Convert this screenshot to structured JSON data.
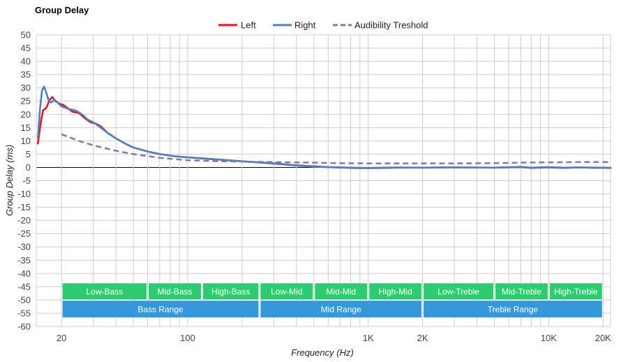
{
  "chart_data": {
    "type": "line",
    "title": "Group Delay",
    "xlabel": "Frequency (Hz)",
    "ylabel": "Group Delay (ms)",
    "x_scale": "log",
    "xlim": [
      14.5,
      22000
    ],
    "ylim": [
      -60,
      50
    ],
    "yticks": [
      50,
      45,
      40,
      35,
      30,
      25,
      20,
      15,
      10,
      5,
      0,
      -5,
      -10,
      -15,
      -20,
      -25,
      -30,
      -35,
      -40,
      -45,
      -50,
      -55,
      -60
    ],
    "xticks": [
      {
        "value": 20,
        "label": "20"
      },
      {
        "value": 100,
        "label": "100"
      },
      {
        "value": 1000,
        "label": "1K"
      },
      {
        "value": 2000,
        "label": "2K"
      },
      {
        "value": 10000,
        "label": "10K"
      },
      {
        "value": 20000,
        "label": "20K"
      }
    ],
    "grid": true,
    "legend_position": "top-center",
    "series": [
      {
        "name": "Left",
        "color": "#e8141c",
        "style": "solid",
        "points": [
          [
            14.8,
            9
          ],
          [
            15.3,
            16
          ],
          [
            15.8,
            21.5
          ],
          [
            16.5,
            22.5
          ],
          [
            17.2,
            25.5
          ],
          [
            17.8,
            26.5
          ],
          [
            18.5,
            25
          ],
          [
            19.5,
            24
          ],
          [
            20.5,
            23.5
          ],
          [
            21.5,
            22.5
          ],
          [
            23,
            21
          ],
          [
            25,
            20.5
          ],
          [
            27,
            18.5
          ],
          [
            29,
            17
          ],
          [
            31,
            16.5
          ],
          [
            33,
            15.5
          ],
          [
            36,
            13
          ],
          [
            40,
            11
          ],
          [
            45,
            9
          ],
          [
            50,
            7.5
          ],
          [
            60,
            6
          ],
          [
            70,
            5
          ],
          [
            85,
            4.2
          ],
          [
            100,
            3.8
          ],
          [
            130,
            3.2
          ],
          [
            160,
            2.8
          ],
          [
            200,
            2.3
          ],
          [
            300,
            1.5
          ],
          [
            400,
            0.8
          ],
          [
            500,
            0.4
          ],
          [
            600,
            0.1
          ],
          [
            800,
            -0.2
          ],
          [
            1000,
            -0.3
          ],
          [
            1200,
            -0.2
          ],
          [
            1500,
            -0.1
          ],
          [
            2000,
            -0.1
          ],
          [
            3000,
            0
          ],
          [
            5000,
            -0.1
          ],
          [
            7000,
            0.1
          ],
          [
            8000,
            -0.2
          ],
          [
            10000,
            0
          ],
          [
            12000,
            -0.2
          ],
          [
            15000,
            0
          ],
          [
            18000,
            -0.1
          ],
          [
            22000,
            -0.2
          ]
        ]
      },
      {
        "name": "Right",
        "color": "#4f81bd",
        "style": "solid",
        "points": [
          [
            14.8,
            11
          ],
          [
            15.2,
            22
          ],
          [
            15.6,
            29
          ],
          [
            16,
            30.5
          ],
          [
            16.5,
            28
          ],
          [
            17,
            25
          ],
          [
            17.5,
            24.5
          ],
          [
            18.3,
            25.5
          ],
          [
            19,
            24.5
          ],
          [
            20,
            23
          ],
          [
            21,
            22.5
          ],
          [
            22,
            22
          ],
          [
            24,
            21.5
          ],
          [
            26,
            20
          ],
          [
            28,
            18
          ],
          [
            30,
            17
          ],
          [
            33,
            15
          ],
          [
            36,
            13
          ],
          [
            40,
            11
          ],
          [
            45,
            9
          ],
          [
            50,
            7.5
          ],
          [
            60,
            6
          ],
          [
            70,
            5
          ],
          [
            85,
            4.2
          ],
          [
            100,
            3.8
          ],
          [
            130,
            3.3
          ],
          [
            160,
            2.8
          ],
          [
            200,
            2.3
          ],
          [
            300,
            1.4
          ],
          [
            400,
            0.7
          ],
          [
            500,
            0.3
          ],
          [
            600,
            0.1
          ],
          [
            800,
            -0.1
          ],
          [
            1000,
            -0.2
          ],
          [
            1200,
            -0.1
          ],
          [
            1500,
            0
          ],
          [
            2000,
            -0.1
          ],
          [
            3000,
            0
          ],
          [
            5000,
            -0.1
          ],
          [
            7000,
            0.2
          ],
          [
            8000,
            -0.1
          ],
          [
            10000,
            0.1
          ],
          [
            12000,
            -0.1
          ],
          [
            15000,
            0
          ],
          [
            18000,
            -0.2
          ],
          [
            22000,
            -0.1
          ]
        ]
      },
      {
        "name": "Audibility Treshold",
        "color": "#7e7ba8",
        "style": "dashed",
        "points": [
          [
            20,
            12.5
          ],
          [
            25,
            10
          ],
          [
            30,
            8.3
          ],
          [
            40,
            6.3
          ],
          [
            50,
            5
          ],
          [
            70,
            3.6
          ],
          [
            100,
            2.7
          ],
          [
            150,
            2.3
          ],
          [
            200,
            2.2
          ],
          [
            300,
            2
          ],
          [
            500,
            1.8
          ],
          [
            700,
            1.6
          ],
          [
            1000,
            1.5
          ],
          [
            2000,
            1.5
          ],
          [
            3000,
            1.5
          ],
          [
            5000,
            1.6
          ],
          [
            7000,
            1.8
          ],
          [
            10000,
            1.9
          ],
          [
            15000,
            2
          ],
          [
            22000,
            2
          ]
        ]
      }
    ],
    "bands": [
      {
        "label": "Low-Bass",
        "from": 20,
        "to": 60,
        "row": 1,
        "color": "#2ecc71"
      },
      {
        "label": "Mid-Bass",
        "from": 60,
        "to": 120,
        "row": 1,
        "color": "#2ecc71"
      },
      {
        "label": "High-Bass",
        "from": 120,
        "to": 250,
        "row": 1,
        "color": "#2ecc71"
      },
      {
        "label": "Low-Mid",
        "from": 250,
        "to": 500,
        "row": 1,
        "color": "#2ecc71"
      },
      {
        "label": "Mid-Mid",
        "from": 500,
        "to": 1000,
        "row": 1,
        "color": "#2ecc71"
      },
      {
        "label": "High-Mid",
        "from": 1000,
        "to": 2000,
        "row": 1,
        "color": "#2ecc71"
      },
      {
        "label": "Low-Treble",
        "from": 2000,
        "to": 5000,
        "row": 1,
        "color": "#2ecc71"
      },
      {
        "label": "Mid-Treble",
        "from": 5000,
        "to": 10000,
        "row": 1,
        "color": "#2ecc71"
      },
      {
        "label": "High-Treble",
        "from": 10000,
        "to": 20000,
        "row": 1,
        "color": "#2ecc71"
      },
      {
        "label": "Bass Range",
        "from": 20,
        "to": 250,
        "row": 2,
        "color": "#3498db"
      },
      {
        "label": "Mid Range",
        "from": 250,
        "to": 2000,
        "row": 2,
        "color": "#3498db"
      },
      {
        "label": "Treble Range",
        "from": 2000,
        "to": 20000,
        "row": 2,
        "color": "#3498db"
      }
    ]
  }
}
